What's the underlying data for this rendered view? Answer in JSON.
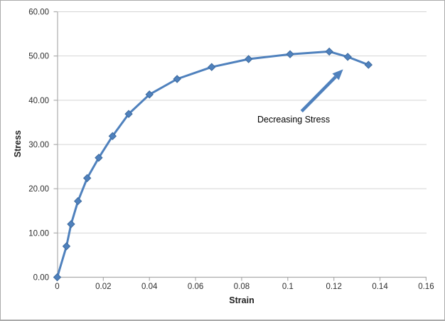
{
  "chart_data": {
    "type": "line",
    "title": "",
    "xlabel": "Strain",
    "ylabel": "Stress",
    "x": [
      0,
      0.004,
      0.006,
      0.009,
      0.013,
      0.018,
      0.024,
      0.031,
      0.04,
      0.052,
      0.067,
      0.083,
      0.101,
      0.118,
      0.126,
      0.135
    ],
    "series": [
      {
        "name": "Stress",
        "values": [
          0,
          7.0,
          12.0,
          17.2,
          22.4,
          27.0,
          31.9,
          36.9,
          41.3,
          44.8,
          47.5,
          49.3,
          50.4,
          51.0,
          49.8,
          48.0
        ]
      }
    ],
    "xlim": [
      0,
      0.16
    ],
    "ylim": [
      0,
      60
    ],
    "x_ticks": {
      "values": [
        0,
        0.02,
        0.04,
        0.06,
        0.08,
        0.1,
        0.12,
        0.14,
        0.16
      ],
      "labels": [
        "0",
        "0.02",
        "0.04",
        "0.06",
        "0.08",
        "0.1",
        "0.12",
        "0.14",
        "0.16"
      ]
    },
    "y_ticks": {
      "values": [
        0,
        10,
        20,
        30,
        40,
        50,
        60
      ],
      "labels": [
        "0.00",
        "10.00",
        "20.00",
        "30.00",
        "40.00",
        "50.00",
        "60.00"
      ]
    },
    "grid": "horizontal",
    "legend": "none",
    "marker": "diamond",
    "annotation": {
      "text": "Decreasing Stress",
      "arrow_from": {
        "x": 0.106,
        "y": 37.5
      },
      "arrow_to": {
        "x": 0.124,
        "y": 47.0
      }
    }
  },
  "colors": {
    "series": "#4F81BD",
    "marker_edge": "#3D6A9E",
    "grid": "#D4D4D4",
    "axis": "#ACACAC",
    "tick_text": "#2E2E2E",
    "title_text": "#1F1F1F",
    "annotation_arrow": "#4F81BD",
    "border": "#ABABAB",
    "background": "#FFFFFF"
  }
}
